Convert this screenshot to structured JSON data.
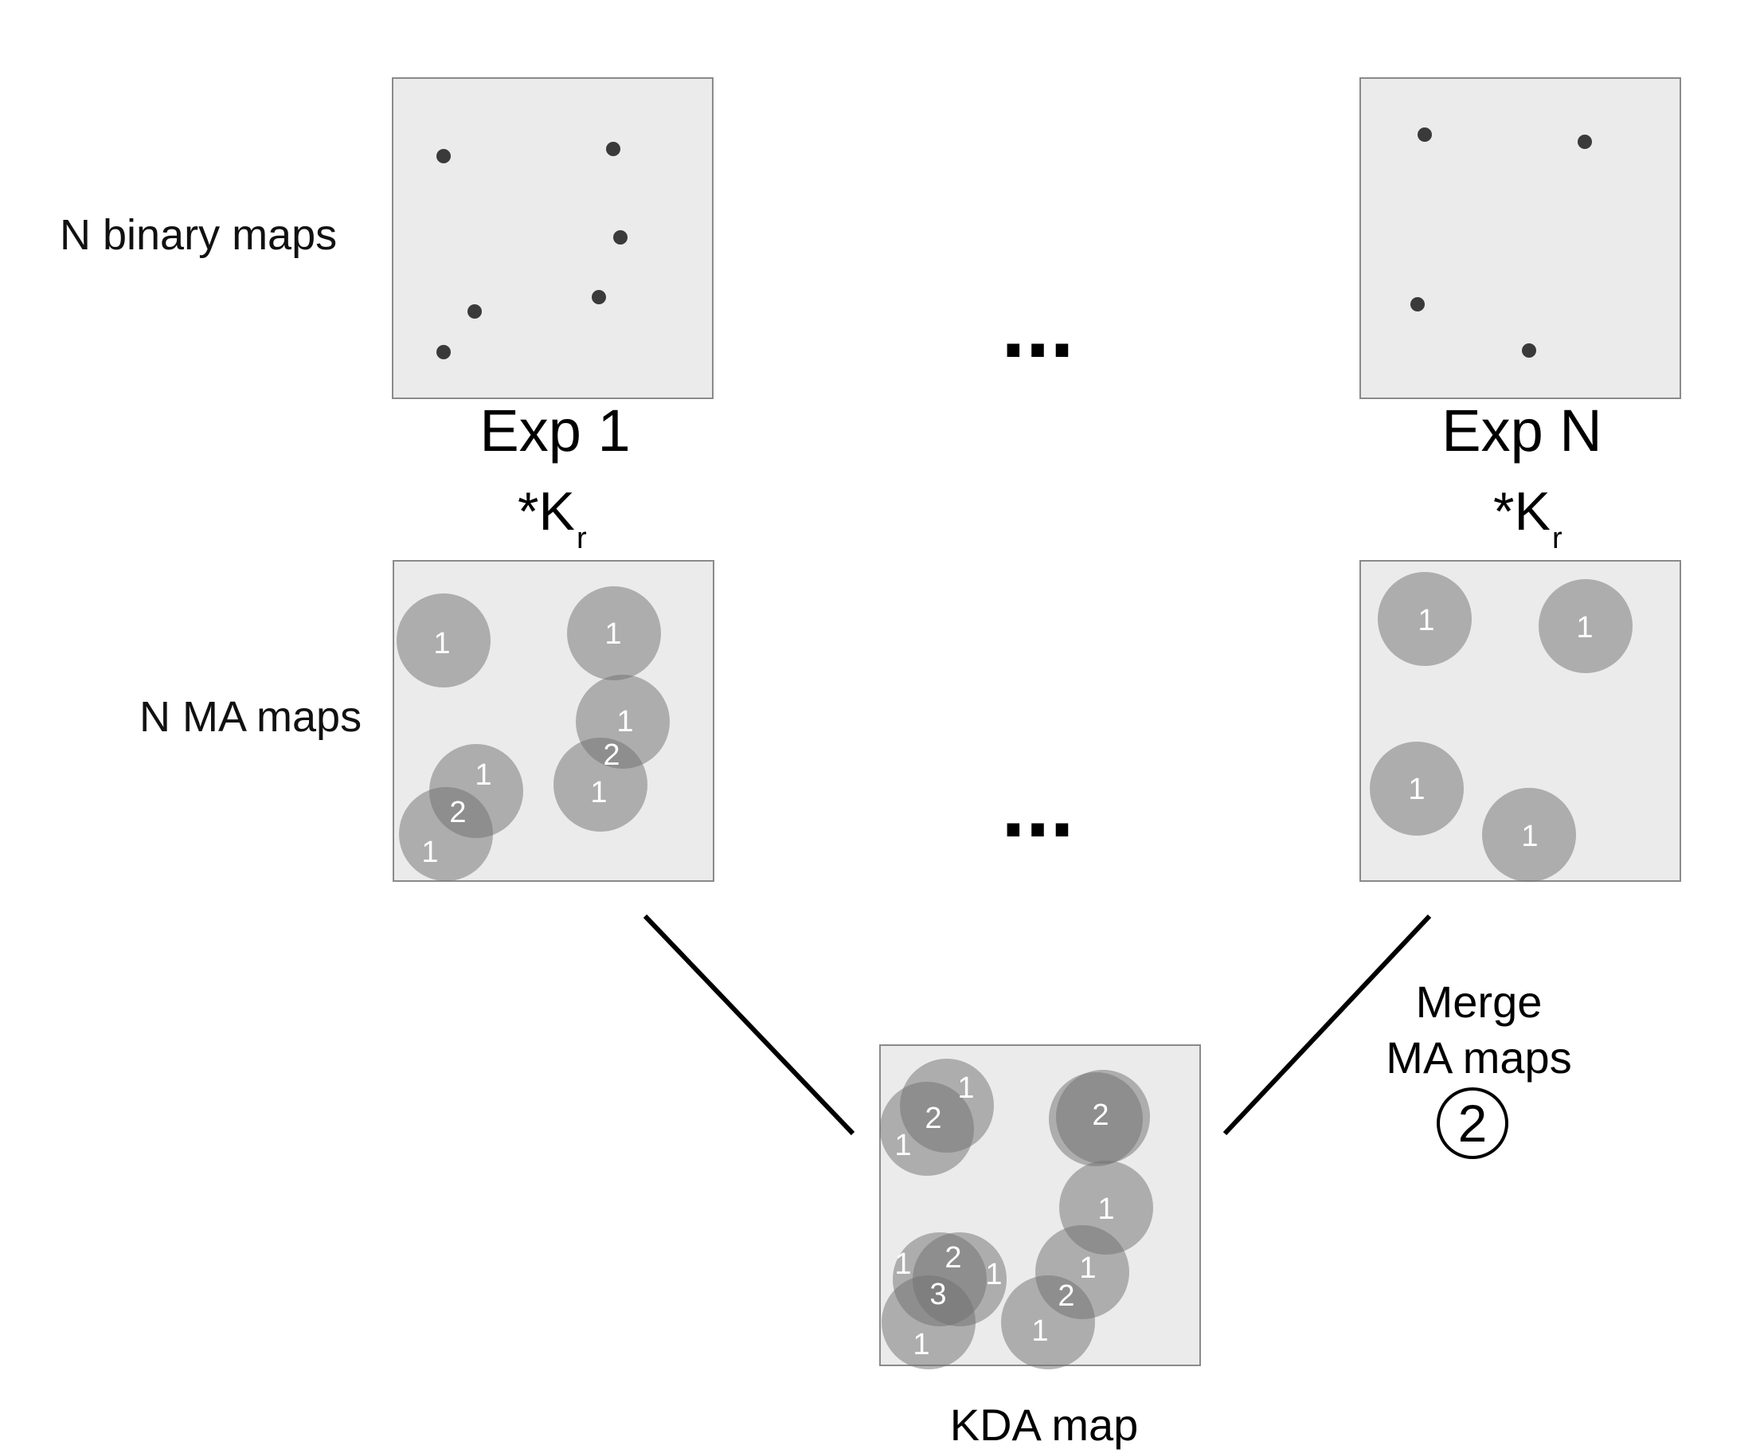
{
  "labels": {
    "binary_maps": "N binary maps",
    "ma_maps": "N MA maps",
    "exp_first": "Exp 1",
    "exp_last": "Exp N",
    "kernel_prefix": "*K",
    "kernel_sub": "r",
    "ellipsis": "...",
    "merge_line1": "Merge",
    "merge_line2": "MA maps",
    "step_number": "2",
    "kda_map": "KDA map"
  },
  "colors": {
    "panel_fill": "#ebebeb",
    "panel_border": "#8a8a8a",
    "dot": "#3a3a3a",
    "blob": "#6f6f6f",
    "line": "#000000"
  },
  "ma_values": {
    "exp1": [
      "1",
      "1",
      "1",
      "2",
      "1",
      "2",
      "1",
      "1"
    ],
    "expN": [
      "1",
      "1",
      "1",
      "1"
    ],
    "kda": [
      "1",
      "2",
      "1",
      "2",
      "1",
      "1",
      "2",
      "1",
      "3",
      "1",
      "1",
      "2",
      "1"
    ]
  }
}
